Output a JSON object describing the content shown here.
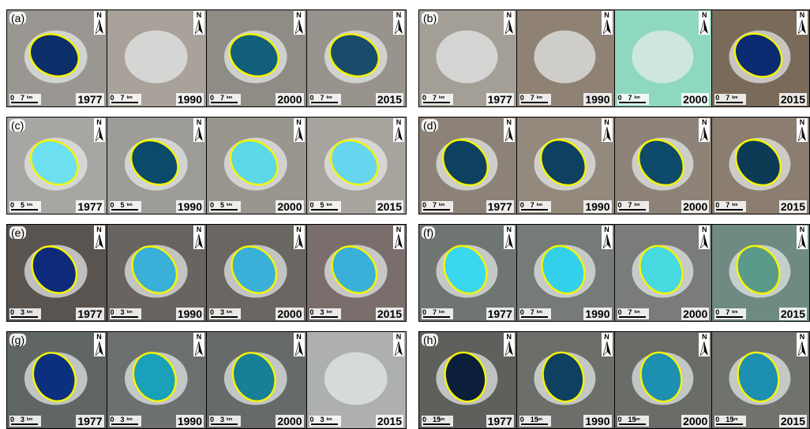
{
  "north_label": "N",
  "scale_start": "0",
  "unit": "km",
  "panels": [
    {
      "label": "(a)",
      "scale": "7",
      "tiles": [
        {
          "year": "1977"
        },
        {
          "year": "1990"
        },
        {
          "year": "2000"
        },
        {
          "year": "2015"
        }
      ]
    },
    {
      "label": "(b)",
      "scale": "7",
      "tiles": [
        {
          "year": "1977"
        },
        {
          "year": "1990"
        },
        {
          "year": "2000"
        },
        {
          "year": "2015"
        }
      ]
    },
    {
      "label": "(c)",
      "scale": "5",
      "tiles": [
        {
          "year": "1977"
        },
        {
          "year": "1990"
        },
        {
          "year": "2000"
        },
        {
          "year": "2015"
        }
      ]
    },
    {
      "label": "(d)",
      "scale": "7",
      "tiles": [
        {
          "year": "1977"
        },
        {
          "year": "1990"
        },
        {
          "year": "2000"
        },
        {
          "year": "2015"
        }
      ]
    },
    {
      "label": "(e)",
      "scale": "3",
      "tiles": [
        {
          "year": "1977"
        },
        {
          "year": "1990"
        },
        {
          "year": "2000"
        },
        {
          "year": "2015"
        }
      ]
    },
    {
      "label": "(f)",
      "scale": "7",
      "tiles": [
        {
          "year": "1977"
        },
        {
          "year": "1990"
        },
        {
          "year": "2000"
        },
        {
          "year": "2015"
        }
      ]
    },
    {
      "label": "(g)",
      "scale": "3",
      "tiles": [
        {
          "year": "1977"
        },
        {
          "year": "1990"
        },
        {
          "year": "2000"
        },
        {
          "year": "2015"
        }
      ]
    },
    {
      "label": "(h)",
      "scale": "15",
      "tiles": [
        {
          "year": "1977"
        },
        {
          "year": "1990"
        },
        {
          "year": "2000"
        },
        {
          "year": "2015"
        }
      ]
    }
  ]
}
